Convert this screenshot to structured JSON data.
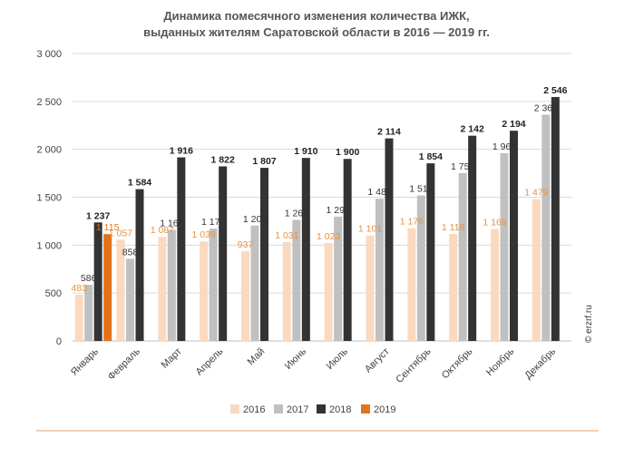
{
  "chart_data": {
    "type": "bar",
    "title": "Динамика помесячного изменения количества ИЖК,",
    "subtitle": "выданных жителям Саратовской области в 2016 — 2019 гг.",
    "categories": [
      "Январь",
      "Февраль",
      "Март",
      "Апрель",
      "Май",
      "Июнь",
      "Июль",
      "Август",
      "Сентябрь",
      "Октябрь",
      "Ноябрь",
      "Декабрь"
    ],
    "ylim": [
      0,
      3000
    ],
    "yticks": [
      0,
      500,
      1000,
      1500,
      2000,
      2500,
      3000
    ],
    "ytick_labels": [
      "0",
      "500",
      "1 000",
      "1 500",
      "2 000",
      "2 500",
      "3 000"
    ],
    "grid": "horizontal",
    "legend_position": "bottom",
    "series": [
      {
        "name": "2016",
        "color": "#fbd9bf",
        "label_color": "#e8923f",
        "values": [
          483,
          1057,
          1087,
          1039,
          937,
          1031,
          1023,
          1101,
          1176,
          1116,
          1169,
          1479
        ],
        "value_labels": [
          "483",
          "1 057",
          "1 087",
          "1 039",
          "937",
          "1 031",
          "1 023",
          "1 101",
          "1 176",
          "1 116",
          "1 169",
          "1 479"
        ]
      },
      {
        "name": "2017",
        "color": "#c0c0c0",
        "label_color": "#333333",
        "values": [
          586,
          858,
          1160,
          1172,
          1204,
          1263,
          1297,
          1485,
          1519,
          1752,
          1960,
          2362
        ],
        "value_labels": [
          "586",
          "858",
          "1 160",
          "1 172",
          "1 204",
          "1 263",
          "1 297",
          "1 485",
          "1 519",
          "1 752",
          "1 960",
          "2 362"
        ]
      },
      {
        "name": "2018",
        "color": "#333333",
        "label_color": "#222222",
        "values": [
          1237,
          1584,
          1916,
          1822,
          1807,
          1910,
          1900,
          2114,
          1854,
          2142,
          2194,
          2546
        ],
        "value_labels": [
          "1 237",
          "1 584",
          "1 916",
          "1 822",
          "1 807",
          "1 910",
          "1 900",
          "2 114",
          "1 854",
          "2 142",
          "2 194",
          "2 546"
        ]
      },
      {
        "name": "2019",
        "color": "#e3731b",
        "label_color": "#e3731b",
        "values": [
          1115,
          null,
          null,
          null,
          null,
          null,
          null,
          null,
          null,
          null,
          null,
          null
        ],
        "value_labels": [
          "1 115",
          "",
          "",
          "",
          "",
          "",
          "",
          "",
          "",
          "",
          "",
          ""
        ]
      }
    ]
  },
  "watermark": "© erzrf.ru",
  "colors": {
    "gridline": "#d9d9d9",
    "axis": "#bfbfbf",
    "footer_line": "#e3a36e"
  }
}
